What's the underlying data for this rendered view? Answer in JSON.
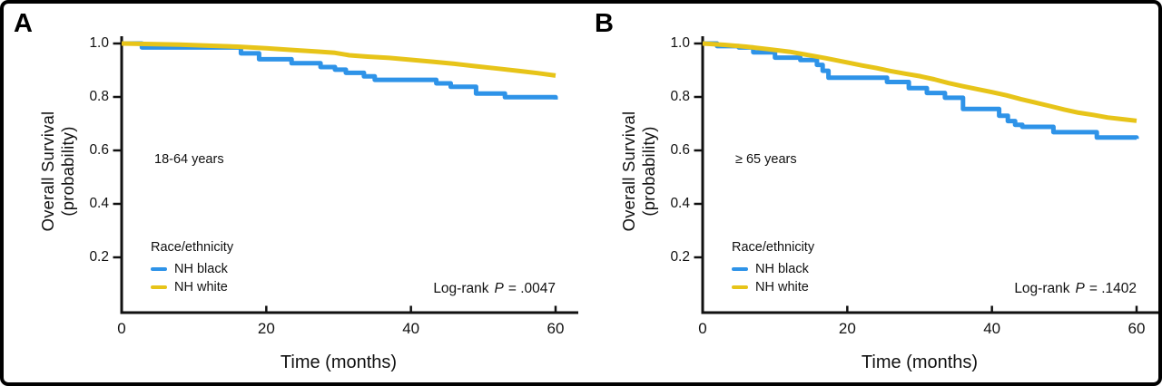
{
  "figure": {
    "background": "#ffffff",
    "border_color": "#000000",
    "axis_color": "#111111"
  },
  "chart_data": [
    {
      "type": "line",
      "subtype": "kaplan-meier",
      "panel_label": "A",
      "annotation": "18-64 years",
      "legend_title": "Race/ethnicity",
      "legend_position": "lower-left",
      "xlabel": "Time (months)",
      "ylabel": "Overall Survival\n(probability)",
      "xticks": [
        0,
        20,
        40,
        60
      ],
      "yticks": [
        0.2,
        0.4,
        0.6,
        0.8,
        1.0
      ],
      "xlim": [
        0,
        63
      ],
      "ylim": [
        0,
        1.0
      ],
      "grid": false,
      "stat": {
        "label": "Log-rank",
        "p_symbol": "P",
        "value": "= .0047"
      },
      "series": [
        {
          "name": "NH black",
          "color": "#2e93e8",
          "style": "step",
          "points": [
            [
              0,
              1.0
            ],
            [
              2.8,
              0.985
            ],
            [
              16.5,
              0.963
            ],
            [
              19,
              0.941
            ],
            [
              23.5,
              0.926
            ],
            [
              27.5,
              0.912
            ],
            [
              29.5,
              0.902
            ],
            [
              31,
              0.89
            ],
            [
              33.5,
              0.877
            ],
            [
              35,
              0.864
            ],
            [
              43.5,
              0.851
            ],
            [
              45.5,
              0.838
            ],
            [
              49,
              0.813
            ],
            [
              53,
              0.799
            ],
            [
              60,
              0.79
            ]
          ]
        },
        {
          "name": "NH white",
          "color": "#e7c419",
          "style": "line",
          "points": [
            [
              0,
              1.0
            ],
            [
              4,
              0.998
            ],
            [
              8,
              0.996
            ],
            [
              12,
              0.992
            ],
            [
              16,
              0.988
            ],
            [
              20,
              0.982
            ],
            [
              24,
              0.975
            ],
            [
              27,
              0.97
            ],
            [
              29.5,
              0.965
            ],
            [
              31.5,
              0.956
            ],
            [
              34,
              0.951
            ],
            [
              37,
              0.946
            ],
            [
              40,
              0.939
            ],
            [
              43,
              0.932
            ],
            [
              46,
              0.924
            ],
            [
              49,
              0.915
            ],
            [
              52,
              0.906
            ],
            [
              55,
              0.897
            ],
            [
              57.5,
              0.889
            ],
            [
              60,
              0.88
            ]
          ]
        }
      ]
    },
    {
      "type": "line",
      "subtype": "kaplan-meier",
      "panel_label": "B",
      "annotation": "≥ 65 years",
      "legend_title": "Race/ethnicity",
      "legend_position": "lower-left",
      "xlabel": "Time (months)",
      "ylabel": "Overall Survival\n(probability)",
      "xticks": [
        0,
        20,
        40,
        60
      ],
      "yticks": [
        0.2,
        0.4,
        0.6,
        0.8,
        1.0
      ],
      "xlim": [
        0,
        63
      ],
      "ylim": [
        0,
        1.0
      ],
      "grid": false,
      "stat": {
        "label": "Log-rank",
        "p_symbol": "P",
        "value": "= .1402"
      },
      "series": [
        {
          "name": "NH black",
          "color": "#2e93e8",
          "style": "step",
          "points": [
            [
              0,
              1.0
            ],
            [
              2,
              0.99
            ],
            [
              5,
              0.985
            ],
            [
              7,
              0.967
            ],
            [
              10,
              0.947
            ],
            [
              13.5,
              0.938
            ],
            [
              15.8,
              0.92
            ],
            [
              16.6,
              0.898
            ],
            [
              17.4,
              0.872
            ],
            [
              25.5,
              0.856
            ],
            [
              28.5,
              0.833
            ],
            [
              31,
              0.815
            ],
            [
              33.5,
              0.797
            ],
            [
              36,
              0.755
            ],
            [
              41,
              0.73
            ],
            [
              42.2,
              0.71
            ],
            [
              43.2,
              0.696
            ],
            [
              44.2,
              0.688
            ],
            [
              48.5,
              0.668
            ],
            [
              54.5,
              0.648
            ],
            [
              60,
              0.643
            ]
          ]
        },
        {
          "name": "NH white",
          "color": "#e7c419",
          "style": "line",
          "points": [
            [
              0,
              1.0
            ],
            [
              3,
              0.995
            ],
            [
              6,
              0.988
            ],
            [
              9,
              0.979
            ],
            [
              12,
              0.969
            ],
            [
              15,
              0.955
            ],
            [
              17,
              0.945
            ],
            [
              20,
              0.929
            ],
            [
              22,
              0.918
            ],
            [
              24,
              0.908
            ],
            [
              26,
              0.897
            ],
            [
              28,
              0.887
            ],
            [
              30,
              0.878
            ],
            [
              32,
              0.866
            ],
            [
              34,
              0.852
            ],
            [
              36,
              0.84
            ],
            [
              38,
              0.829
            ],
            [
              40,
              0.818
            ],
            [
              42,
              0.806
            ],
            [
              44,
              0.792
            ],
            [
              46,
              0.779
            ],
            [
              48,
              0.766
            ],
            [
              50,
              0.753
            ],
            [
              52,
              0.741
            ],
            [
              54,
              0.733
            ],
            [
              56,
              0.723
            ],
            [
              58,
              0.717
            ],
            [
              60,
              0.711
            ]
          ]
        }
      ]
    }
  ]
}
